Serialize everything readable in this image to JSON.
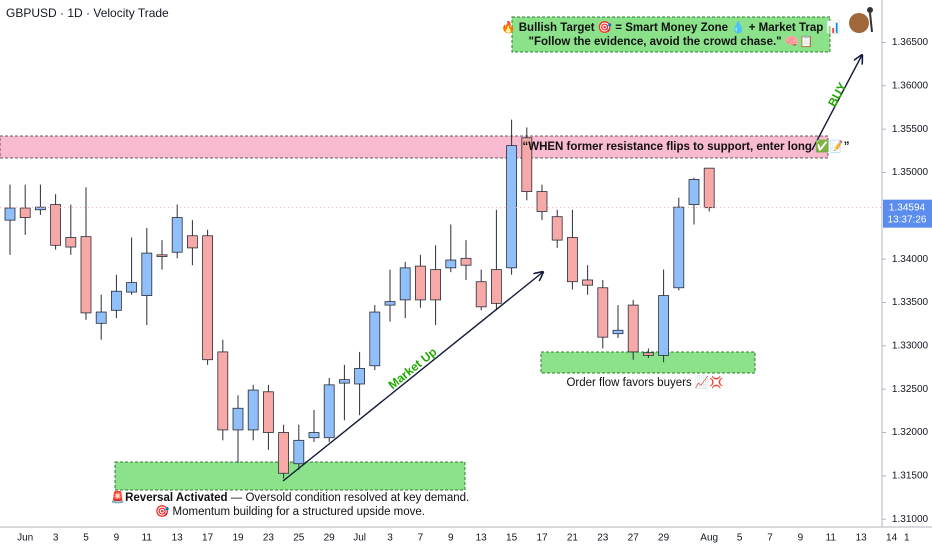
{
  "chart_data": {
    "type": "candlestick",
    "title": "GBPUSD · 1D · Velocity Trade",
    "categories": [
      null,
      "Jun",
      null,
      "3",
      null,
      "5",
      null,
      "9",
      null,
      "11",
      null,
      "13",
      null,
      "17",
      null,
      "19",
      null,
      "23",
      null,
      "25",
      null,
      "29",
      null,
      "Jul",
      null,
      "3",
      null,
      "7",
      null,
      "9",
      null,
      "13",
      null,
      "15",
      null,
      "17",
      null,
      "21",
      null,
      "23",
      null,
      "27",
      null,
      "29",
      null,
      null,
      "Aug",
      null,
      "5",
      null,
      "7",
      null,
      "9",
      null,
      "11",
      null,
      "13",
      null,
      "14",
      "1"
    ],
    "open": [
      1.3445,
      1.3459,
      1.3457,
      1.3463,
      1.3425,
      1.3426,
      1.3326,
      1.3341,
      1.3362,
      1.3358,
      1.3405,
      1.3408,
      1.3427,
      1.3427,
      1.3293,
      1.3203,
      1.3203,
      1.3247,
      1.32,
      1.3164,
      1.3194,
      1.3194,
      1.3257,
      1.3256,
      1.3277,
      1.3347,
      1.3353,
      1.3392,
      1.3388,
      1.339,
      1.3401,
      1.3374,
      1.3388,
      1.339,
      1.354,
      1.3478,
      1.3449,
      1.3425,
      1.3376,
      1.3367,
      1.3314,
      1.3347,
      1.3292,
      1.3289,
      1.3367,
      1.3463,
      1.3505,
      null,
      null,
      null,
      null,
      null,
      null,
      null,
      null,
      null,
      null,
      null,
      null,
      null
    ],
    "high": [
      1.3486,
      1.3486,
      1.3486,
      1.3475,
      1.3463,
      1.3483,
      1.3359,
      1.3382,
      1.3425,
      1.3436,
      1.3422,
      1.3463,
      1.3445,
      1.3434,
      1.3307,
      1.3243,
      1.3255,
      1.3255,
      1.3209,
      1.3209,
      1.3226,
      1.3263,
      1.3278,
      1.3293,
      1.3347,
      1.3388,
      1.3397,
      1.3405,
      1.3416,
      1.344,
      1.3422,
      1.3388,
      1.3457,
      1.3561,
      1.3552,
      1.3486,
      1.3457,
      1.3457,
      1.3393,
      1.3376,
      1.3347,
      1.3353,
      1.3297,
      1.3388,
      1.3471,
      1.3494,
      1.3505,
      null,
      null,
      null,
      null,
      null,
      null,
      null,
      null,
      null,
      null,
      null,
      null,
      null
    ],
    "low": [
      1.3405,
      1.3428,
      1.3451,
      1.3411,
      1.3405,
      1.333,
      1.3307,
      1.3332,
      1.3359,
      1.3324,
      1.3388,
      1.3401,
      1.3393,
      1.3278,
      1.3191,
      1.3165,
      1.3191,
      1.318,
      1.3147,
      1.3157,
      1.3189,
      1.3189,
      1.3214,
      1.322,
      1.3272,
      1.3328,
      1.3332,
      1.3344,
      1.3324,
      1.3385,
      1.3376,
      1.3341,
      1.3341,
      1.3382,
      1.3468,
      1.3445,
      1.3413,
      1.3365,
      1.3359,
      1.3297,
      1.3309,
      1.3284,
      1.3286,
      1.3281,
      1.3364,
      1.344,
      1.3455,
      null,
      null,
      null,
      null,
      null,
      null,
      null,
      null,
      null,
      null,
      null,
      null,
      null
    ],
    "close": [
      1.3459,
      1.3448,
      1.346,
      1.3416,
      1.3414,
      1.3338,
      1.3339,
      1.3363,
      1.3373,
      1.3407,
      1.3403,
      1.3448,
      1.3413,
      1.3284,
      1.3203,
      1.3228,
      1.3249,
      1.32,
      1.3153,
      1.3191,
      1.32,
      1.3255,
      1.3261,
      1.3274,
      1.3339,
      1.3351,
      1.339,
      1.3353,
      1.3353,
      1.3399,
      1.3393,
      1.3345,
      1.3349,
      1.3531,
      1.3478,
      1.3455,
      1.3422,
      1.3374,
      1.337,
      1.331,
      1.3318,
      1.3293,
      1.3289,
      1.3358,
      1.346,
      1.3492,
      1.34594,
      null,
      null,
      null,
      null,
      null,
      null,
      null,
      null,
      null,
      null,
      null,
      null,
      null
    ],
    "up_color": "#90bff9",
    "down_color": "#f7a9a7",
    "ylim": [
      1.3091,
      1.3699
    ],
    "yticks": [
      {
        "value": 1.365,
        "label": "1.36500"
      },
      {
        "value": 1.36,
        "label": "1.36000"
      },
      {
        "value": 1.355,
        "label": "1.35500"
      },
      {
        "value": 1.35,
        "label": "1.35000"
      },
      {
        "value": 1.34,
        "label": "1.34000"
      },
      {
        "value": 1.335,
        "label": "1.33500"
      },
      {
        "value": 1.33,
        "label": "1.33000"
      },
      {
        "value": 1.325,
        "label": "1.32500"
      },
      {
        "value": 1.32,
        "label": "1.32000"
      },
      {
        "value": 1.315,
        "label": "1.31500"
      },
      {
        "value": 1.31,
        "label": "1.31000"
      }
    ],
    "grid": false,
    "last_price": {
      "value": 1.34594,
      "label": "1.34594"
    },
    "countdown": "13:37:26",
    "annotations": {
      "target_line1": "🔥 Bullish Target 🎯 = Smart Money Zone 💧 + Market Trap 📊",
      "target_line2": "\"Follow the evidence, avoid the crowd chase.\" 🧠📋",
      "resistance": "“WHEN former resistance flips to support, enter long ✅📝”",
      "buy": "BUY",
      "market_up": "Market Up",
      "order_flow": "Order flow favors buyers 📈💢",
      "reversal_icon": "🚨",
      "reversal_title": "Reversal Activated",
      "reversal_text": " — Oversold condition resolved at key demand.",
      "momentum": "🎯 Momentum building for a structured upside move."
    }
  }
}
